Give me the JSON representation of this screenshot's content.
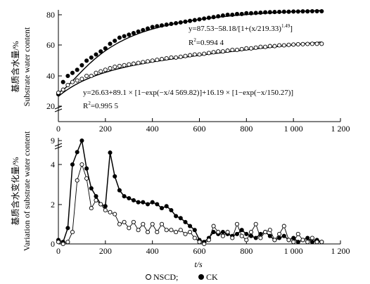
{
  "chart_data": [
    {
      "type": "scatter",
      "panel": "top",
      "ylabel_cn": "基质含水量/%",
      "ylabel_en": "Substrate water content",
      "xlim": [
        0,
        1200
      ],
      "ylim": [
        20,
        85
      ],
      "x_ticks": [
        "0",
        "200",
        "400",
        "600",
        "800",
        "1 000",
        "1 200"
      ],
      "y_ticks": [
        "20",
        "40",
        "60",
        "80"
      ],
      "grid": false,
      "annotations": [
        {
          "text": "y=87.53−58.18/[1+(x/219.33)",
          "sup": "1.49",
          "tail": "]"
        },
        {
          "text": "R",
          "sup": "2",
          "tail": "=0.994 4"
        },
        {
          "text": "y=26.63+89.1 × [1−exp(−x/4 569.82)]+16.19 × [1−exp(−x/150.27)]"
        },
        {
          "text": "R",
          "sup": "2",
          "tail": "=0.995 5"
        }
      ],
      "series": [
        {
          "name": "CK",
          "marker": "filled-circle",
          "x": [
            0,
            20,
            40,
            60,
            80,
            100,
            120,
            140,
            160,
            180,
            200,
            220,
            240,
            260,
            280,
            300,
            320,
            340,
            360,
            380,
            400,
            420,
            440,
            460,
            480,
            500,
            520,
            540,
            560,
            580,
            600,
            620,
            640,
            660,
            680,
            700,
            720,
            740,
            760,
            780,
            800,
            820,
            840,
            860,
            880,
            900,
            920,
            940,
            960,
            980,
            1000,
            1020,
            1040,
            1060,
            1080,
            1100,
            1120
          ],
          "y": [
            28,
            36,
            40,
            42,
            44,
            47,
            50,
            52,
            54,
            56,
            58,
            61,
            63,
            65,
            66,
            67,
            68,
            69,
            70,
            71,
            72,
            72.5,
            73,
            73.5,
            74,
            74.5,
            75,
            75.5,
            76,
            76.5,
            77,
            77.5,
            78,
            78.5,
            79,
            79.5,
            80,
            80,
            80.5,
            80.5,
            81,
            81,
            81.2,
            81.4,
            81.6,
            81.7,
            81.8,
            81.9,
            82,
            82,
            82.1,
            82.1,
            82.2,
            82.2,
            82.3,
            82.3,
            82.3
          ]
        },
        {
          "name": "NSCD",
          "marker": "open-circle",
          "x": [
            0,
            20,
            40,
            60,
            80,
            100,
            120,
            140,
            160,
            180,
            200,
            220,
            240,
            260,
            280,
            300,
            320,
            340,
            360,
            380,
            400,
            420,
            440,
            460,
            480,
            500,
            520,
            540,
            560,
            580,
            600,
            620,
            640,
            660,
            680,
            700,
            720,
            740,
            760,
            780,
            800,
            820,
            840,
            860,
            880,
            900,
            920,
            940,
            960,
            980,
            1000,
            1020,
            1040,
            1060,
            1080,
            1100,
            1120
          ],
          "y": [
            29,
            31,
            34,
            36,
            37,
            38,
            40,
            40,
            42,
            43,
            44,
            45,
            46,
            46.5,
            47,
            47.5,
            48,
            48.5,
            49,
            49.5,
            50,
            50.5,
            51,
            51.5,
            52,
            52,
            52.5,
            53,
            53.5,
            54,
            54,
            54.5,
            55,
            55.5,
            56,
            56,
            56.5,
            57,
            57,
            57.5,
            58,
            58,
            58.5,
            59,
            59,
            59.5,
            59.5,
            60,
            60,
            60.3,
            60.5,
            60.7,
            60.8,
            60.9,
            61,
            61,
            61
          ]
        }
      ]
    },
    {
      "type": "line",
      "panel": "bottom",
      "ylabel_cn": "基质含水变化量/%",
      "ylabel_en": "Variation of substrate water content",
      "xlabel": "t/s",
      "xlim": [
        0,
        1200
      ],
      "ylim": [
        0,
        9
      ],
      "x_ticks": [
        "0",
        "200",
        "400",
        "600",
        "800",
        "1 000",
        "1 200"
      ],
      "y_ticks": [
        "0",
        "2",
        "4",
        "9"
      ],
      "grid": false,
      "series": [
        {
          "name": "CK",
          "marker": "filled-circle",
          "x": [
            0,
            20,
            40,
            60,
            80,
            100,
            120,
            140,
            160,
            180,
            200,
            220,
            240,
            260,
            280,
            300,
            320,
            340,
            360,
            380,
            400,
            420,
            440,
            460,
            480,
            500,
            520,
            540,
            560,
            580,
            600,
            620,
            640,
            660,
            680,
            700,
            720,
            740,
            760,
            780,
            800,
            820,
            840,
            860,
            880,
            900,
            920,
            940,
            960,
            980,
            1000,
            1020,
            1040,
            1060,
            1080,
            1100,
            1120
          ],
          "y": [
            0.2,
            0.1,
            0.8,
            4.0,
            4.9,
            9.0,
            3.8,
            2.8,
            2.4,
            2.0,
            1.9,
            4.6,
            3.4,
            2.7,
            2.4,
            2.3,
            2.2,
            2.1,
            2.1,
            2.0,
            2.1,
            2.0,
            1.8,
            1.9,
            1.7,
            1.4,
            1.3,
            1.1,
            0.9,
            0.7,
            0.2,
            0.1,
            0.3,
            0.6,
            0.5,
            0.6,
            0.5,
            0.4,
            0.5,
            0.7,
            0.5,
            0.4,
            0.3,
            0.5,
            0.6,
            0.4,
            0.2,
            0.3,
            0.4,
            0.2,
            0.3,
            0.1,
            0.2,
            0.3,
            0.1,
            0.2,
            0.1
          ]
        },
        {
          "name": "NSCD",
          "marker": "open-circle",
          "x": [
            0,
            20,
            40,
            60,
            80,
            100,
            120,
            140,
            160,
            180,
            200,
            220,
            240,
            260,
            280,
            300,
            320,
            340,
            360,
            380,
            400,
            420,
            440,
            460,
            480,
            500,
            520,
            540,
            560,
            580,
            600,
            620,
            640,
            660,
            680,
            700,
            720,
            740,
            760,
            780,
            800,
            820,
            840,
            860,
            880,
            900,
            920,
            940,
            960,
            980,
            1000,
            1020,
            1040,
            1060,
            1080,
            1100,
            1120
          ],
          "y": [
            0.1,
            0,
            0.1,
            0.6,
            3.2,
            4.0,
            3.3,
            1.8,
            2.2,
            2.0,
            1.7,
            1.6,
            1.5,
            1.0,
            1.1,
            0.8,
            1.1,
            0.7,
            1.0,
            0.6,
            1.0,
            0.6,
            1.0,
            0.7,
            0.7,
            0.6,
            0.7,
            0.5,
            0.6,
            0.3,
            0.1,
            0,
            0.2,
            0.9,
            0.6,
            0.4,
            0.6,
            0.3,
            1.0,
            0.4,
            0.2,
            0.6,
            1.0,
            0.3,
            0.6,
            0.7,
            0.2,
            0.5,
            0.9,
            0.2,
            0.1,
            0.5,
            0.2,
            0.1,
            0.3,
            0.1,
            0.1
          ]
        }
      ]
    }
  ],
  "legend": {
    "items": [
      {
        "name": "NSCD",
        "marker": "open-circle",
        "separator": ";"
      },
      {
        "name": "CK",
        "marker": "filled-circle"
      }
    ],
    "placement": "bottom-center"
  }
}
